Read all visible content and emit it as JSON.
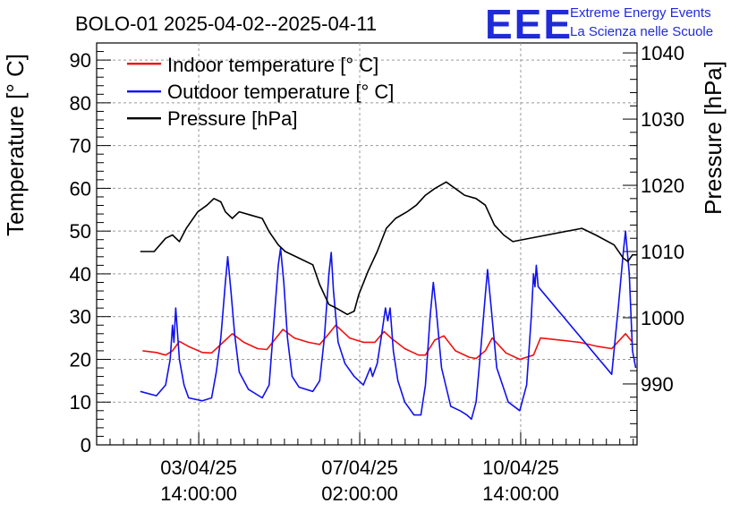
{
  "header": {
    "title": "BOLO-01 2025-04-02--2025-04-11",
    "logo": "EEE",
    "brand_line1": "Extreme Energy Events",
    "brand_line2": "La Scienza nelle Scuole"
  },
  "chart_data": {
    "type": "line",
    "ylabel": "Temperature [° C]",
    "y2label": "Pressure [hPa]",
    "ylim": [
      0,
      94
    ],
    "y2lim": [
      980.8,
      1041.5
    ],
    "y_ticks": [
      0,
      10,
      20,
      30,
      40,
      50,
      60,
      70,
      80,
      90
    ],
    "y2_ticks": [
      990,
      1000,
      1010,
      1020,
      1030,
      1040
    ],
    "x_ticks": [
      {
        "t": 1.22,
        "line1": "03/04/25",
        "line2": "14:00:00"
      },
      {
        "t": 4.72,
        "line1": "07/04/25",
        "line2": "02:00:00"
      },
      {
        "t": 8.22,
        "line1": "10/04/25",
        "line2": "14:00:00"
      }
    ],
    "xlim": [
      -1.0,
      10.75
    ],
    "grid": true,
    "legend_position": "top-left",
    "series": [
      {
        "name": "Indoor temperature [° C]",
        "color": "#ee1111",
        "axis": "left",
        "values": [
          [
            0,
            22
          ],
          [
            0.3,
            21.6
          ],
          [
            0.5,
            21
          ],
          [
            0.65,
            22
          ],
          [
            0.8,
            24.2
          ],
          [
            1.0,
            23
          ],
          [
            1.3,
            21.6
          ],
          [
            1.5,
            21.5
          ],
          [
            1.75,
            24
          ],
          [
            1.95,
            26
          ],
          [
            2.2,
            24
          ],
          [
            2.5,
            22.5
          ],
          [
            2.7,
            22.3
          ],
          [
            2.9,
            25
          ],
          [
            3.05,
            27
          ],
          [
            3.3,
            25
          ],
          [
            3.6,
            24
          ],
          [
            3.85,
            23.5
          ],
          [
            4.05,
            26
          ],
          [
            4.2,
            28
          ],
          [
            4.5,
            25
          ],
          [
            4.8,
            24
          ],
          [
            5.05,
            24
          ],
          [
            5.25,
            26.5
          ],
          [
            5.4,
            25
          ],
          [
            5.7,
            22.5
          ],
          [
            6.0,
            21
          ],
          [
            6.15,
            21
          ],
          [
            6.35,
            24.5
          ],
          [
            6.55,
            25.5
          ],
          [
            6.8,
            22
          ],
          [
            7.1,
            20.5
          ],
          [
            7.25,
            20.2
          ],
          [
            7.45,
            22
          ],
          [
            7.6,
            25
          ],
          [
            7.9,
            21.5
          ],
          [
            8.2,
            20
          ],
          [
            8.5,
            21
          ],
          [
            8.65,
            25
          ],
          [
            9.5,
            24
          ],
          [
            9.9,
            23
          ],
          [
            10.2,
            22.5
          ],
          [
            10.5,
            26
          ],
          [
            10.65,
            24
          ]
        ]
      },
      {
        "name": "Outdoor temperature [° C]",
        "color": "#1111ee",
        "axis": "left",
        "values": [
          [
            -0.05,
            12.5
          ],
          [
            0.3,
            11.5
          ],
          [
            0.5,
            14
          ],
          [
            0.6,
            20
          ],
          [
            0.65,
            28
          ],
          [
            0.68,
            24
          ],
          [
            0.72,
            32
          ],
          [
            0.8,
            20
          ],
          [
            0.9,
            14
          ],
          [
            1.0,
            11
          ],
          [
            1.3,
            10.3
          ],
          [
            1.5,
            11
          ],
          [
            1.6,
            17
          ],
          [
            1.7,
            25
          ],
          [
            1.8,
            38
          ],
          [
            1.85,
            44
          ],
          [
            1.92,
            36
          ],
          [
            2.0,
            26
          ],
          [
            2.1,
            17
          ],
          [
            2.3,
            13
          ],
          [
            2.6,
            11
          ],
          [
            2.75,
            14
          ],
          [
            2.85,
            28
          ],
          [
            2.95,
            42
          ],
          [
            3.0,
            46
          ],
          [
            3.07,
            38
          ],
          [
            3.15,
            25
          ],
          [
            3.25,
            16
          ],
          [
            3.4,
            13.5
          ],
          [
            3.7,
            12.5
          ],
          [
            3.85,
            15
          ],
          [
            3.95,
            25
          ],
          [
            4.05,
            40
          ],
          [
            4.1,
            45
          ],
          [
            4.15,
            36
          ],
          [
            4.25,
            24
          ],
          [
            4.4,
            19
          ],
          [
            4.6,
            16
          ],
          [
            4.8,
            14
          ],
          [
            4.95,
            18
          ],
          [
            5.0,
            16
          ],
          [
            5.1,
            19
          ],
          [
            5.2,
            26
          ],
          [
            5.28,
            32
          ],
          [
            5.33,
            29
          ],
          [
            5.38,
            32
          ],
          [
            5.45,
            22
          ],
          [
            5.55,
            15
          ],
          [
            5.7,
            10
          ],
          [
            5.9,
            7
          ],
          [
            6.05,
            7
          ],
          [
            6.15,
            14
          ],
          [
            6.25,
            30
          ],
          [
            6.32,
            38
          ],
          [
            6.38,
            32
          ],
          [
            6.5,
            18
          ],
          [
            6.7,
            9
          ],
          [
            6.9,
            8
          ],
          [
            7.05,
            7
          ],
          [
            7.15,
            6
          ],
          [
            7.25,
            10
          ],
          [
            7.35,
            22
          ],
          [
            7.45,
            35
          ],
          [
            7.5,
            41
          ],
          [
            7.58,
            32
          ],
          [
            7.7,
            18
          ],
          [
            7.95,
            10
          ],
          [
            8.2,
            8
          ],
          [
            8.35,
            14
          ],
          [
            8.45,
            30
          ],
          [
            8.5,
            40
          ],
          [
            8.53,
            37
          ],
          [
            8.56,
            42
          ],
          [
            8.6,
            37
          ],
          [
            10.2,
            16.5
          ],
          [
            10.35,
            33
          ],
          [
            10.45,
            45
          ],
          [
            10.5,
            50
          ],
          [
            10.58,
            40
          ],
          [
            10.65,
            22
          ],
          [
            10.72,
            18
          ]
        ]
      },
      {
        "name": "Pressure [hPa]",
        "color": "#000000",
        "axis": "right",
        "values": [
          [
            -0.05,
            1010
          ],
          [
            0.25,
            1010
          ],
          [
            0.5,
            1012
          ],
          [
            0.65,
            1012.5
          ],
          [
            0.8,
            1011.5
          ],
          [
            0.95,
            1013.5
          ],
          [
            1.2,
            1016
          ],
          [
            1.4,
            1017
          ],
          [
            1.55,
            1018
          ],
          [
            1.7,
            1017.5
          ],
          [
            1.8,
            1016
          ],
          [
            1.95,
            1015
          ],
          [
            2.1,
            1016
          ],
          [
            2.35,
            1015.5
          ],
          [
            2.6,
            1015
          ],
          [
            2.75,
            1013
          ],
          [
            2.95,
            1011
          ],
          [
            3.1,
            1010
          ],
          [
            3.4,
            1009
          ],
          [
            3.7,
            1008
          ],
          [
            3.85,
            1005
          ],
          [
            4.05,
            1002
          ],
          [
            4.2,
            1001.5
          ],
          [
            4.45,
            1000.5
          ],
          [
            4.6,
            1001
          ],
          [
            4.7,
            1003.5
          ],
          [
            4.9,
            1007
          ],
          [
            5.1,
            1010
          ],
          [
            5.3,
            1013.5
          ],
          [
            5.5,
            1015
          ],
          [
            5.75,
            1016
          ],
          [
            5.95,
            1017
          ],
          [
            6.15,
            1018.5
          ],
          [
            6.35,
            1019.5
          ],
          [
            6.6,
            1020.5
          ],
          [
            6.8,
            1019.5
          ],
          [
            7.0,
            1018.5
          ],
          [
            7.25,
            1018
          ],
          [
            7.45,
            1017
          ],
          [
            7.65,
            1014
          ],
          [
            7.85,
            1012.5
          ],
          [
            8.05,
            1011.5
          ],
          [
            8.2,
            1011.7
          ],
          [
            9.55,
            1013.5
          ],
          [
            9.85,
            1012.5
          ],
          [
            10.25,
            1011
          ],
          [
            10.45,
            1009
          ],
          [
            10.55,
            1008.5
          ],
          [
            10.65,
            1009.5
          ],
          [
            10.75,
            1009.5
          ]
        ]
      }
    ]
  }
}
